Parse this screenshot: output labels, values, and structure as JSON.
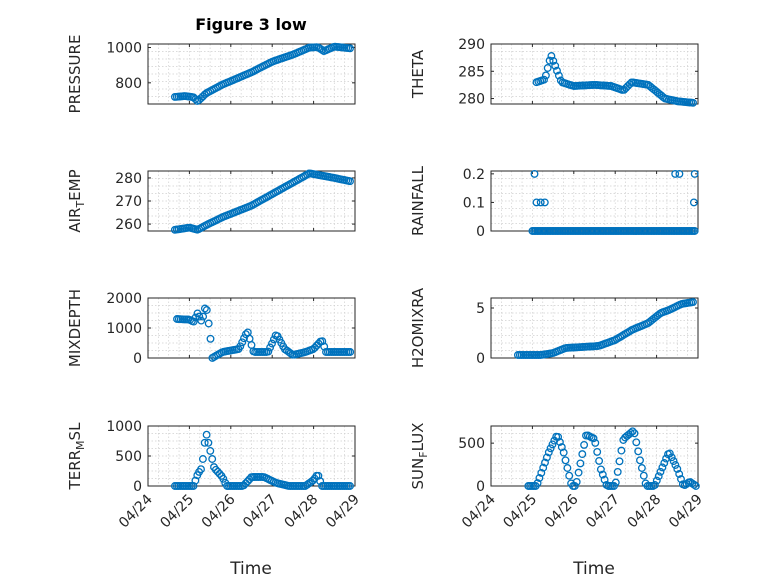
{
  "figure_title": "Figure 3 low",
  "xlabel": "Time",
  "chart_data": [
    {
      "type": "scatter",
      "ylabel": "PRESSURE",
      "ylabel_sub": "",
      "ylabel_post": "",
      "xlim": [
        0,
        5
      ],
      "ylim": [
        680,
        1020
      ],
      "xticks": [
        0,
        1,
        2,
        3,
        4,
        5
      ],
      "xticklabels": [
        "04/24",
        "04/25",
        "04/26",
        "04/27",
        "04/28",
        "04/29"
      ],
      "show_xticklabels": false,
      "yticks": [
        800,
        1000
      ],
      "yticklabels": [
        "800",
        "1000"
      ],
      "anchors": [
        [
          0.65,
          720
        ],
        [
          0.9,
          725
        ],
        [
          1.1,
          718
        ],
        [
          1.2,
          695
        ],
        [
          1.4,
          740
        ],
        [
          1.8,
          790
        ],
        [
          2.5,
          860
        ],
        [
          3.0,
          920
        ],
        [
          3.5,
          960
        ],
        [
          3.9,
          1000
        ],
        [
          4.1,
          1002
        ],
        [
          4.25,
          980
        ],
        [
          4.5,
          1005
        ],
        [
          4.9,
          995
        ]
      ]
    },
    {
      "type": "scatter",
      "ylabel": "THETA",
      "ylabel_sub": "",
      "ylabel_post": "",
      "xlim": [
        0,
        5
      ],
      "ylim": [
        279,
        290
      ],
      "xticks": [
        0,
        1,
        2,
        3,
        4,
        5
      ],
      "xticklabels": [
        "04/24",
        "04/25",
        "04/26",
        "04/27",
        "04/28",
        "04/29"
      ],
      "show_xticklabels": false,
      "yticks": [
        280,
        285,
        290
      ],
      "yticklabels": [
        "280",
        "285",
        "290"
      ],
      "anchors": [
        [
          1.1,
          283
        ],
        [
          1.3,
          283.5
        ],
        [
          1.45,
          288
        ],
        [
          1.55,
          286
        ],
        [
          1.7,
          283
        ],
        [
          2.0,
          282.3
        ],
        [
          2.5,
          282.5
        ],
        [
          2.9,
          282.3
        ],
        [
          3.2,
          281.5
        ],
        [
          3.4,
          283
        ],
        [
          3.8,
          282.5
        ],
        [
          4.2,
          280
        ],
        [
          4.5,
          279.5
        ],
        [
          4.9,
          279.2
        ]
      ]
    },
    {
      "type": "scatter",
      "ylabel": "AIR",
      "ylabel_sub": "T",
      "ylabel_post": "EMP",
      "xlim": [
        0,
        5
      ],
      "ylim": [
        257,
        283
      ],
      "xticks": [
        0,
        1,
        2,
        3,
        4,
        5
      ],
      "xticklabels": [
        "04/24",
        "04/25",
        "04/26",
        "04/27",
        "04/28",
        "04/29"
      ],
      "show_xticklabels": false,
      "yticks": [
        260,
        270,
        280
      ],
      "yticklabels": [
        "260",
        "270",
        "280"
      ],
      "anchors": [
        [
          0.65,
          257.5
        ],
        [
          1.0,
          258.5
        ],
        [
          1.2,
          257.5
        ],
        [
          1.4,
          259.5
        ],
        [
          1.8,
          263
        ],
        [
          2.5,
          268
        ],
        [
          3.0,
          273
        ],
        [
          3.5,
          278
        ],
        [
          3.9,
          282
        ],
        [
          4.2,
          281
        ],
        [
          4.5,
          280
        ],
        [
          4.9,
          278.5
        ]
      ]
    },
    {
      "type": "scatter",
      "ylabel": "RAINFALL",
      "ylabel_sub": "",
      "ylabel_post": "",
      "xlim": [
        0,
        5
      ],
      "ylim": [
        0,
        0.21
      ],
      "xticks": [
        0,
        1,
        2,
        3,
        4,
        5
      ],
      "xticklabels": [
        "04/24",
        "04/25",
        "04/26",
        "04/27",
        "04/28",
        "04/29"
      ],
      "show_xticklabels": false,
      "yticks": [
        0,
        0.1,
        0.2
      ],
      "yticklabels": [
        "0",
        "0.1",
        "0.2"
      ],
      "points": [
        [
          1.05,
          0.2
        ],
        [
          1.1,
          0.1
        ],
        [
          1.2,
          0.1
        ],
        [
          1.3,
          0.1
        ],
        [
          4.45,
          0.2
        ],
        [
          4.55,
          0.2
        ],
        [
          4.9,
          0.1
        ],
        [
          4.92,
          0.2
        ]
      ],
      "baseline": {
        "from": 1.0,
        "to": 4.95,
        "value": 0
      }
    },
    {
      "type": "scatter",
      "ylabel": "MIXDEPTH",
      "ylabel_sub": "",
      "ylabel_post": "",
      "xlim": [
        0,
        5
      ],
      "ylim": [
        0,
        2000
      ],
      "xticks": [
        0,
        1,
        2,
        3,
        4,
        5
      ],
      "xticklabels": [
        "04/24",
        "04/25",
        "04/26",
        "04/27",
        "04/28",
        "04/29"
      ],
      "show_xticklabels": false,
      "yticks": [
        0,
        1000,
        2000
      ],
      "yticklabels": [
        "0",
        "1000",
        "2000"
      ],
      "anchors": [
        [
          0.7,
          1300
        ],
        [
          1.0,
          1280
        ],
        [
          1.1,
          1200
        ],
        [
          1.2,
          1500
        ],
        [
          1.3,
          1200
        ],
        [
          1.4,
          1800
        ],
        [
          1.5,
          800
        ],
        [
          1.55,
          0
        ],
        [
          1.8,
          200
        ],
        [
          2.2,
          300
        ],
        [
          2.4,
          900
        ],
        [
          2.55,
          200
        ],
        [
          2.9,
          200
        ],
        [
          3.1,
          800
        ],
        [
          3.3,
          300
        ],
        [
          3.5,
          100
        ],
        [
          3.8,
          200
        ],
        [
          4.0,
          300
        ],
        [
          4.2,
          600
        ],
        [
          4.3,
          200
        ],
        [
          4.6,
          200
        ],
        [
          4.9,
          200
        ]
      ]
    },
    {
      "type": "scatter",
      "ylabel": "H2OMIXRA",
      "ylabel_sub": "",
      "ylabel_post": "",
      "xlim": [
        0,
        5
      ],
      "ylim": [
        0,
        6
      ],
      "xticks": [
        0,
        1,
        2,
        3,
        4,
        5
      ],
      "xticklabels": [
        "04/24",
        "04/25",
        "04/26",
        "04/27",
        "04/28",
        "04/29"
      ],
      "show_xticklabels": false,
      "yticks": [
        0,
        5
      ],
      "yticklabels": [
        "0",
        "5"
      ],
      "anchors": [
        [
          0.65,
          0.3
        ],
        [
          1.2,
          0.3
        ],
        [
          1.5,
          0.5
        ],
        [
          1.8,
          1.0
        ],
        [
          2.2,
          1.1
        ],
        [
          2.6,
          1.2
        ],
        [
          3.0,
          1.8
        ],
        [
          3.4,
          2.8
        ],
        [
          3.8,
          3.5
        ],
        [
          4.1,
          4.5
        ],
        [
          4.3,
          4.8
        ],
        [
          4.6,
          5.4
        ],
        [
          4.9,
          5.6
        ]
      ]
    },
    {
      "type": "scatter",
      "ylabel": "TERR",
      "ylabel_sub": "M",
      "ylabel_post": "SL",
      "xlim": [
        0,
        5
      ],
      "ylim": [
        0,
        1000
      ],
      "xticks": [
        0,
        1,
        2,
        3,
        4,
        5
      ],
      "xticklabels": [
        "04/24",
        "04/25",
        "04/26",
        "04/27",
        "04/28",
        "04/29"
      ],
      "show_xticklabels": true,
      "yticks": [
        0,
        500,
        1000
      ],
      "yticklabels": [
        "0",
        "500",
        "1000"
      ],
      "anchors": [
        [
          0.65,
          0
        ],
        [
          1.1,
          0
        ],
        [
          1.2,
          200
        ],
        [
          1.3,
          300
        ],
        [
          1.4,
          900
        ],
        [
          1.5,
          600
        ],
        [
          1.6,
          300
        ],
        [
          1.8,
          150
        ],
        [
          1.9,
          0
        ],
        [
          2.3,
          0
        ],
        [
          2.5,
          150
        ],
        [
          2.8,
          150
        ],
        [
          3.1,
          50
        ],
        [
          3.4,
          0
        ],
        [
          3.8,
          0
        ],
        [
          4.0,
          100
        ],
        [
          4.1,
          200
        ],
        [
          4.2,
          0
        ],
        [
          4.5,
          0
        ],
        [
          4.9,
          0
        ]
      ]
    },
    {
      "type": "scatter",
      "ylabel": "SUN",
      "ylabel_sub": "F",
      "ylabel_post": "LUX",
      "xlim": [
        0,
        5
      ],
      "ylim": [
        0,
        700
      ],
      "xticks": [
        0,
        1,
        2,
        3,
        4,
        5
      ],
      "xticklabels": [
        "04/24",
        "04/25",
        "04/26",
        "04/27",
        "04/28",
        "04/29"
      ],
      "show_xticklabels": true,
      "yticks": [
        0,
        500
      ],
      "yticklabels": [
        "0",
        "500"
      ],
      "anchors": [
        [
          0.9,
          0
        ],
        [
          1.1,
          0
        ],
        [
          1.4,
          400
        ],
        [
          1.6,
          600
        ],
        [
          1.75,
          400
        ],
        [
          1.95,
          0
        ],
        [
          2.05,
          0
        ],
        [
          2.3,
          600
        ],
        [
          2.5,
          550
        ],
        [
          2.65,
          200
        ],
        [
          2.8,
          0
        ],
        [
          3.0,
          0
        ],
        [
          3.2,
          550
        ],
        [
          3.45,
          650
        ],
        [
          3.6,
          300
        ],
        [
          3.75,
          0
        ],
        [
          3.95,
          0
        ],
        [
          4.3,
          400
        ],
        [
          4.5,
          200
        ],
        [
          4.65,
          0
        ],
        [
          4.8,
          50
        ],
        [
          4.95,
          0
        ]
      ]
    }
  ]
}
